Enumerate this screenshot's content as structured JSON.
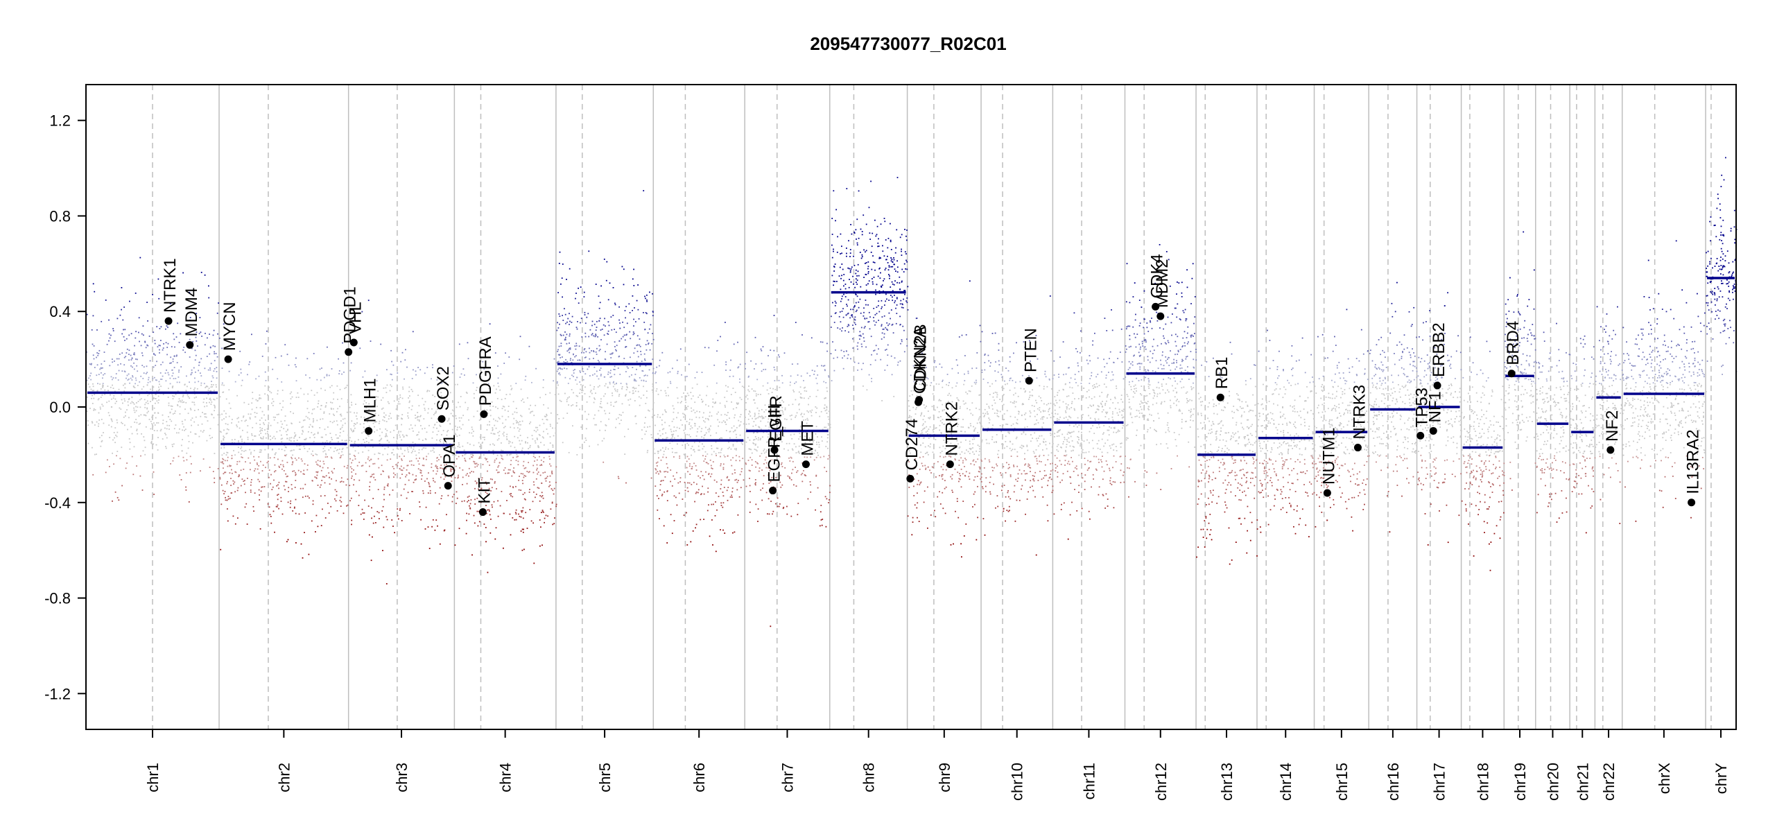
{
  "chart_data": {
    "type": "scatter",
    "title": "209547730077_R02C01",
    "xlabel": "",
    "ylabel": "",
    "ylim": [
      -1.35,
      1.35
    ],
    "y_ticks": [
      -1.2,
      -0.8,
      -0.4,
      0.0,
      0.4,
      0.8,
      1.2
    ],
    "y_tick_labels": [
      "-1.2",
      "-0.8",
      "-0.4",
      "0.0",
      "0.4",
      "0.8",
      "1.2"
    ],
    "colors": {
      "gain": "#00008b",
      "loss": "#8b0000",
      "neutral": "#bebebe",
      "segment": "#00008b",
      "gene": "#000000",
      "chrom_line": "#bebebe"
    },
    "chromosomes": [
      {
        "name": "chr1",
        "size": 249,
        "centromere": 0.5,
        "segment": 0.06
      },
      {
        "name": "chr2",
        "size": 242,
        "centromere": 0.38,
        "segment": -0.155
      },
      {
        "name": "chr3",
        "size": 198,
        "centromere": 0.46,
        "segment": -0.16
      },
      {
        "name": "chr4",
        "size": 190,
        "centromere": 0.26,
        "segment": -0.19
      },
      {
        "name": "chr5",
        "size": 182,
        "centromere": 0.27,
        "segment": 0.18
      },
      {
        "name": "chr6",
        "size": 171,
        "centromere": 0.35,
        "segment": -0.14
      },
      {
        "name": "chr7",
        "size": 159,
        "centromere": 0.38,
        "segment": -0.1
      },
      {
        "name": "chr8",
        "size": 145,
        "centromere": 0.31,
        "segment": 0.48
      },
      {
        "name": "chr9",
        "size": 138,
        "centromere": 0.36,
        "segment": -0.12
      },
      {
        "name": "chr10",
        "size": 134,
        "centromere": 0.3,
        "segment": -0.095
      },
      {
        "name": "chr11",
        "size": 135,
        "centromere": 0.4,
        "segment": -0.065
      },
      {
        "name": "chr12",
        "size": 133,
        "centromere": 0.27,
        "segment": 0.14
      },
      {
        "name": "chr13",
        "size": 114,
        "centromere": 0.15,
        "segment": -0.2
      },
      {
        "name": "chr14",
        "size": 107,
        "centromere": 0.16,
        "segment": -0.13
      },
      {
        "name": "chr15",
        "size": 102,
        "centromere": 0.18,
        "segment": -0.105
      },
      {
        "name": "chr16",
        "size": 90,
        "centromere": 0.4,
        "segment": -0.01
      },
      {
        "name": "chr17",
        "size": 83,
        "centromere": 0.3,
        "segment": 0.0
      },
      {
        "name": "chr18",
        "size": 80,
        "centromere": 0.2,
        "segment": -0.17
      },
      {
        "name": "chr19",
        "size": 59,
        "centromere": 0.45,
        "segment": 0.13
      },
      {
        "name": "chr20",
        "size": 64,
        "centromere": 0.44,
        "segment": -0.07
      },
      {
        "name": "chr21",
        "size": 47,
        "centromere": 0.27,
        "segment": -0.105
      },
      {
        "name": "chr22",
        "size": 51,
        "centromere": 0.29,
        "segment": 0.04
      },
      {
        "name": "chrX",
        "size": 156,
        "centromere": 0.39,
        "segment": 0.055
      },
      {
        "name": "chrY",
        "size": 57,
        "centromere": 0.18,
        "segment": 0.54
      }
    ],
    "genes": [
      {
        "name": "NTRK1",
        "chrom": "chr1",
        "pos": 0.62,
        "value": 0.36
      },
      {
        "name": "MDM4",
        "chrom": "chr1",
        "pos": 0.78,
        "value": 0.26
      },
      {
        "name": "MYCN",
        "chrom": "chr2",
        "pos": 0.07,
        "value": 0.2
      },
      {
        "name": "PDGD1",
        "chrom": "chr3",
        "pos": 0.0,
        "value": 0.23
      },
      {
        "name": "VHL",
        "chrom": "chr3",
        "pos": 0.05,
        "value": 0.27
      },
      {
        "name": "MLH1",
        "chrom": "chr3",
        "pos": 0.19,
        "value": -0.1
      },
      {
        "name": "SOX2",
        "chrom": "chr3",
        "pos": 0.88,
        "value": -0.05
      },
      {
        "name": "OPA1",
        "chrom": "chr3",
        "pos": 0.94,
        "value": -0.33
      },
      {
        "name": "KIT",
        "chrom": "chr4",
        "pos": 0.28,
        "value": -0.44
      },
      {
        "name": "PDGFRA",
        "chrom": "chr4",
        "pos": 0.29,
        "value": -0.03
      },
      {
        "name": "EGFR_vIII",
        "chrom": "chr7",
        "pos": 0.33,
        "value": -0.35
      },
      {
        "name": "EGFR",
        "chrom": "chr7",
        "pos": 0.35,
        "value": -0.18
      },
      {
        "name": "MET",
        "chrom": "chr7",
        "pos": 0.72,
        "value": -0.24
      },
      {
        "name": "CDKN2A",
        "chrom": "chr9",
        "pos": 0.15,
        "value": 0.02
      },
      {
        "name": "CDKN2B",
        "chrom": "chr9",
        "pos": 0.16,
        "value": 0.03
      },
      {
        "name": "CD274",
        "chrom": "chr9",
        "pos": 0.04,
        "value": -0.3
      },
      {
        "name": "NTRK2",
        "chrom": "chr9",
        "pos": 0.58,
        "value": -0.24
      },
      {
        "name": "PTEN",
        "chrom": "chr10",
        "pos": 0.67,
        "value": 0.11
      },
      {
        "name": "CDK4",
        "chrom": "chr12",
        "pos": 0.43,
        "value": 0.42
      },
      {
        "name": "MDM2",
        "chrom": "chr12",
        "pos": 0.5,
        "value": 0.38
      },
      {
        "name": "RB1",
        "chrom": "chr13",
        "pos": 0.4,
        "value": 0.04
      },
      {
        "name": "NUTM1",
        "chrom": "chr15",
        "pos": 0.24,
        "value": -0.36
      },
      {
        "name": "NTRK3",
        "chrom": "chr15",
        "pos": 0.8,
        "value": -0.17
      },
      {
        "name": "TP53",
        "chrom": "chr17",
        "pos": 0.08,
        "value": -0.12
      },
      {
        "name": "NF1",
        "chrom": "chr17",
        "pos": 0.37,
        "value": -0.1
      },
      {
        "name": "ERBB2",
        "chrom": "chr17",
        "pos": 0.46,
        "value": 0.09
      },
      {
        "name": "BRD4",
        "chrom": "chr19",
        "pos": 0.24,
        "value": 0.14
      },
      {
        "name": "NF2",
        "chrom": "chr22",
        "pos": 0.57,
        "value": -0.18
      },
      {
        "name": "IL13RA2",
        "chrom": "chrX",
        "pos": 0.83,
        "value": -0.4
      }
    ],
    "grid": false,
    "legend": "none"
  }
}
